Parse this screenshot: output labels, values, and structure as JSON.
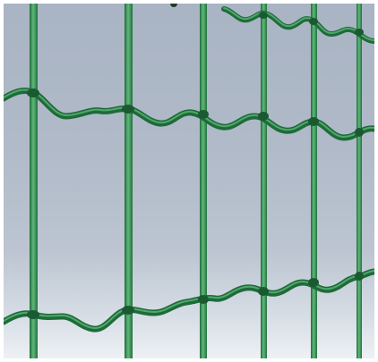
{
  "image": {
    "subject": "welded-wire-fence",
    "colors": {
      "sky_top": "#a9b4c4",
      "sky_bottom": "#eef1f4",
      "wire_dark": "#1f6a3a",
      "wire_mid": "#2f8a4c",
      "wire_light": "#5fb97a"
    }
  }
}
